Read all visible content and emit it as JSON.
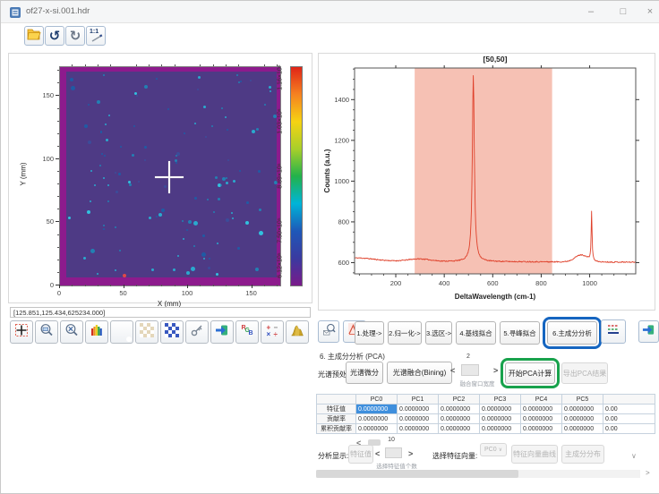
{
  "window": {
    "title": "of27-x-si.001.hdr",
    "controls": {
      "minimize": "–",
      "maximize": "□",
      "close": "×"
    }
  },
  "main_toolbar": {
    "buttons": [
      {
        "icon": "open-folder-icon"
      },
      {
        "icon": "undo-icon",
        "glyph": "↺"
      },
      {
        "icon": "redo-icon",
        "glyph": "↻"
      },
      {
        "icon": "one-to-one-icon",
        "label": "1:1"
      }
    ]
  },
  "status_readout": "[125.851,125.434,625234.000]",
  "chart_data": [
    {
      "type": "heatmap",
      "xlabel": "X (mm)",
      "ylabel": "Y (mm)",
      "xlim": [
        0,
        172
      ],
      "ylim": [
        0,
        173
      ],
      "x_ticks": [
        0,
        50,
        100,
        150
      ],
      "y_ticks": [
        0,
        50,
        100,
        150
      ],
      "frame_color": "#8d1b8d",
      "fill_color": "#4e3a85",
      "colorbar": {
        "tick_labels": [
          "6.12×10⁵",
          "7.50×10⁵",
          "8.89×10⁵",
          "1.03×10⁶",
          "1.16×10⁶"
        ],
        "gradient": [
          "#7a1a8a",
          "#3a3aa0",
          "#1e58b8",
          "#00b4d8",
          "#22b24b",
          "#a8cf2a",
          "#f5d313",
          "#f58220",
          "#e02418"
        ]
      },
      "crosshair": {
        "x": 86,
        "y": 85
      },
      "scatter_dots": {
        "count": 118,
        "seed": 7,
        "colors": [
          "#1e88b8",
          "#27b6d6",
          "#1b5fa8",
          "#2fd0e8",
          "#3a4f9c"
        ]
      },
      "notable_dot": {
        "x": 50,
        "y": 8,
        "color": "#e04848"
      }
    },
    {
      "type": "line",
      "title": "[50,50]",
      "xlabel": "DeltaWavelength (cm-1)",
      "ylabel": "Counts (a.u.)",
      "xlim": [
        30,
        1190
      ],
      "ylim": [
        545,
        1555
      ],
      "x_ticks": [
        200,
        400,
        600,
        800,
        1000
      ],
      "y_ticks": [
        600,
        800,
        1000,
        1200,
        1400
      ],
      "line_color": "#df412b",
      "selection_region": {
        "x0": 278,
        "x1": 845,
        "color": "#ef8e76",
        "opacity": 0.55
      },
      "baseline": 607,
      "peaks": [
        {
          "x": 520,
          "peak_value": 1520,
          "fwhm": 10
        },
        {
          "x": 1008,
          "peak_value": 845,
          "fwhm": 4.5
        },
        {
          "x": 965,
          "peak_value": 641,
          "fwhm": 62,
          "shape": "broad"
        },
        {
          "x": 295,
          "peak_value": 619,
          "fwhm": 106,
          "shape": "broad"
        }
      ]
    }
  ],
  "analysis_tabs": [
    {
      "label": "1.处理->"
    },
    {
      "label": "2.归一化->"
    },
    {
      "label": "3.选区->"
    },
    {
      "label": "4.基线拟合"
    },
    {
      "label": "5.寻峰拟合"
    },
    {
      "label": "6.主成分分析",
      "active": true
    }
  ],
  "side_icons": [
    "pan-crosshair-icon",
    "zoom-box-icon",
    "zoom-reset-icon",
    "colormap-icon",
    "color-wheel-icon",
    "pattern-icon",
    "dither-pattern-icon",
    "key-icon",
    "import-arrow-icon",
    "rgb-icon",
    "math-operators-icon",
    "surface-plot-icon"
  ],
  "pca": {
    "section_title": "6. 主成分分析 (PCA)",
    "preprocess_label": "光谱预处理:",
    "derivative_button": "光谱微分",
    "binning_button": "光谱融合(Bining)",
    "bin_spinner": {
      "value": "2",
      "caption": "融合窗口宽度"
    },
    "start_button": "开始PCA计算",
    "export_button": "导出PCA结果",
    "table": {
      "columns": [
        "PC0",
        "PC1",
        "PC2",
        "PC3",
        "PC4",
        "PC5"
      ],
      "rows": [
        {
          "label": "特征值",
          "values": [
            "0.0000000",
            "0.0000000",
            "0.0000000",
            "0.0000000",
            "0.0000000",
            "0.0000000"
          ],
          "partial": "0.00"
        },
        {
          "label": "贡献率",
          "values": [
            "0.0000000",
            "0.0000000",
            "0.0000000",
            "0.0000000",
            "0.0000000",
            "0.0000000"
          ],
          "partial": "0.00"
        },
        {
          "label": "累积贡献率",
          "values": [
            "0.0000000",
            "0.0000000",
            "0.0000000",
            "0.0000000",
            "0.0000000",
            "0.0000000"
          ],
          "partial": "0.00"
        }
      ],
      "selected_cell": {
        "row": 0,
        "col": 0
      }
    },
    "display_label": "分析显示:",
    "eigen_button": "特征值",
    "count_spinner": {
      "value": "10",
      "caption": "选择特征值个数"
    },
    "vector_label": "选择特征向量:",
    "vector_select": "PC0",
    "curve_button": "特征向量曲线",
    "distribution_button": "主成分分布"
  },
  "glyphs": {
    "spin_left": "<",
    "spin_right": ">",
    "scroll_right": ">",
    "table_scroll_left": "<",
    "chevron_down": "∨",
    "dropdown_arrow": "∨"
  },
  "colors": {
    "accent_blue": "#1565c0",
    "accent_green": "#18a24c",
    "selected_cell": "#3f8fdd",
    "spectrum_red": "#df412b"
  }
}
